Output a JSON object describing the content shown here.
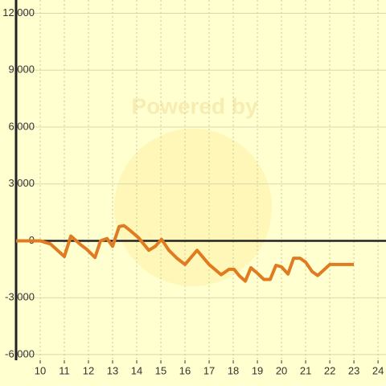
{
  "chart_data": {
    "type": "line",
    "watermark": "Powered by",
    "x": [
      9,
      10,
      10.43,
      11,
      11.27,
      11.67,
      11.93,
      12.27,
      12.5,
      12.77,
      13,
      13.27,
      13.47,
      13.73,
      14.07,
      14.5,
      14.77,
      15.03,
      15.33,
      15.67,
      16,
      16.5,
      17,
      17.5,
      17.83,
      18.03,
      18.27,
      18.5,
      18.73,
      19,
      19.27,
      19.53,
      19.77,
      20,
      20.27,
      20.5,
      20.77,
      21,
      21.27,
      21.5,
      22,
      23
    ],
    "series": [
      {
        "color": "#e07b22",
        "values": [
          0,
          0,
          -170,
          -830,
          250,
          -200,
          -450,
          -880,
          0,
          120,
          -290,
          750,
          800,
          540,
          170,
          -500,
          -290,
          80,
          -500,
          -920,
          -1250,
          -500,
          -1250,
          -1790,
          -1500,
          -1500,
          -1870,
          -2125,
          -1420,
          -1710,
          -2040,
          -2040,
          -1290,
          -1375,
          -1750,
          -920,
          -920,
          -1125,
          -1625,
          -1830,
          -1250,
          -1250
        ]
      }
    ],
    "xlim": [
      9,
      24.33
    ],
    "ylim": [
      -6300,
      12700
    ],
    "xticks": [
      10,
      11,
      12,
      13,
      14,
      15,
      16,
      17,
      18,
      19,
      20,
      21,
      22,
      23,
      24
    ],
    "yticks": [
      {
        "value": -6000,
        "label": "-6,000"
      },
      {
        "value": -3000,
        "label": "-3,000"
      },
      0,
      {
        "value": 3000,
        "label": "3,000"
      },
      {
        "value": 6000,
        "label": "6,000"
      },
      {
        "value": 9000,
        "label": "9,000"
      },
      {
        "value": 12000,
        "label": "12,000"
      }
    ],
    "grid": true
  }
}
